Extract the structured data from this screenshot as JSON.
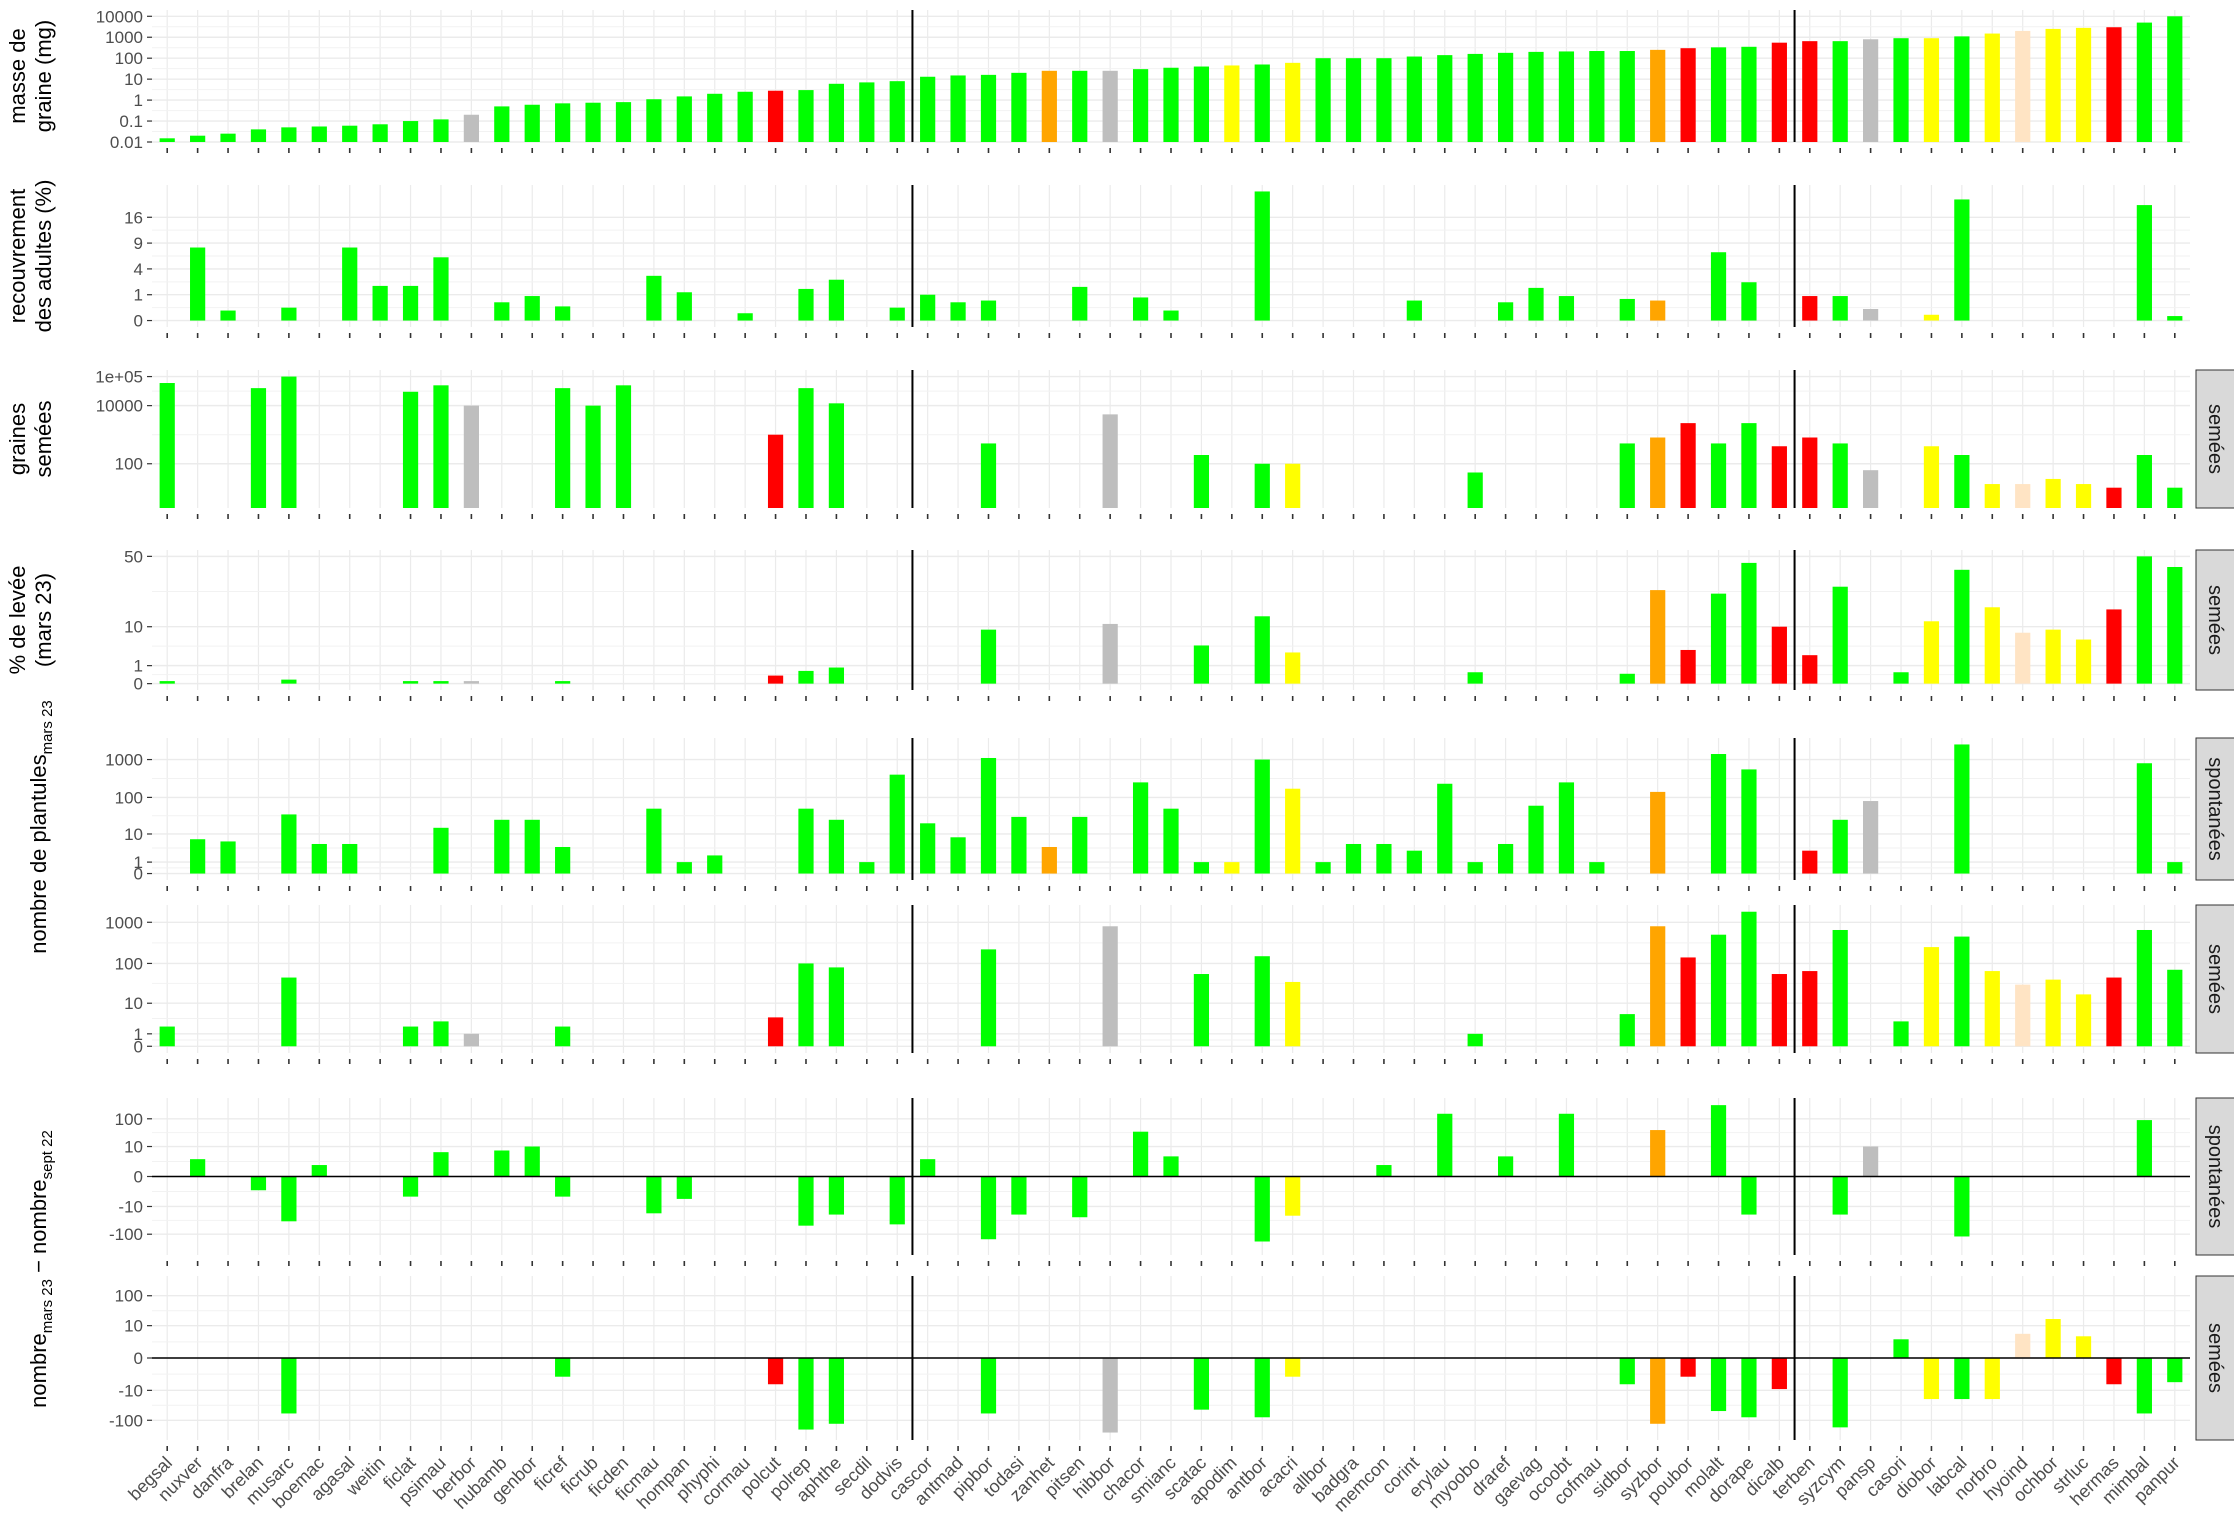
{
  "chart_data": {
    "type": "bar",
    "categories": [
      "begsal",
      "nuxver",
      "danfra",
      "brelan",
      "musarc",
      "boemac",
      "agasal",
      "weitin",
      "ficlat",
      "psimau",
      "berbor",
      "hubamb",
      "genbor",
      "ficref",
      "ficrub",
      "ficden",
      "ficmau",
      "hompan",
      "phyphi",
      "cormau",
      "polcut",
      "polrep",
      "aphthe",
      "secdil",
      "dodvis",
      "cascor",
      "antmad",
      "pipbor",
      "todasi",
      "zanhet",
      "pitsen",
      "hibbor",
      "chacor",
      "smianc",
      "scatac",
      "apodim",
      "antbor",
      "acacri",
      "allbor",
      "badgra",
      "memcon",
      "corint",
      "erylau",
      "myoobo",
      "draref",
      "gaevag",
      "ocoobt",
      "cofmau",
      "sidbor",
      "syzbor",
      "poubor",
      "molalt",
      "dorape",
      "dicalb",
      "terben",
      "syzcym",
      "pansp",
      "casori",
      "diobor",
      "labcal",
      "norbro",
      "hyoind",
      "ochbor",
      "strluc",
      "hermas",
      "mimbal",
      "panpur"
    ],
    "bar_colors": [
      "#00ff00",
      "#00ff00",
      "#00ff00",
      "#00ff00",
      "#00ff00",
      "#00ff00",
      "#00ff00",
      "#00ff00",
      "#00ff00",
      "#00ff00",
      "#bebebe",
      "#00ff00",
      "#00ff00",
      "#00ff00",
      "#00ff00",
      "#00ff00",
      "#00ff00",
      "#00ff00",
      "#00ff00",
      "#00ff00",
      "#ff0000",
      "#00ff00",
      "#00ff00",
      "#00ff00",
      "#00ff00",
      "#00ff00",
      "#00ff00",
      "#00ff00",
      "#00ff00",
      "#ffa500",
      "#00ff00",
      "#bebebe",
      "#00ff00",
      "#00ff00",
      "#00ff00",
      "#ffff00",
      "#00ff00",
      "#ffff00",
      "#00ff00",
      "#00ff00",
      "#00ff00",
      "#00ff00",
      "#00ff00",
      "#00ff00",
      "#00ff00",
      "#00ff00",
      "#00ff00",
      "#00ff00",
      "#00ff00",
      "#ffa500",
      "#ff0000",
      "#00ff00",
      "#00ff00",
      "#ff0000",
      "#ff0000",
      "#00ff00",
      "#bebebe",
      "#00ff00",
      "#ffff00",
      "#00ff00",
      "#ffff00",
      "#ffe4c4",
      "#ffff00",
      "#ffff00",
      "#ff0000",
      "#00ff00",
      "#00ff00"
    ],
    "group_separators_after": [
      "dodvis",
      "dicalb"
    ],
    "x_tick_marks": "every category",
    "grid": true,
    "panels": [
      {
        "ylabel_lines": [
          "masse de",
          "graine (mg)"
        ],
        "strip": "",
        "scale": "log10",
        "ticks": [
          "0.01",
          "0.1",
          "1",
          "10",
          "100",
          "1000",
          "10000"
        ],
        "values": [
          0.015,
          0.02,
          0.025,
          0.04,
          0.05,
          0.055,
          0.06,
          0.07,
          0.1,
          0.12,
          0.2,
          0.5,
          0.6,
          0.7,
          0.75,
          0.8,
          1.1,
          1.5,
          2,
          2.5,
          2.8,
          3,
          6,
          7,
          8,
          13,
          15,
          16,
          20,
          25,
          25,
          25,
          30,
          35,
          40,
          45,
          50,
          60,
          100,
          100,
          100,
          120,
          140,
          160,
          180,
          200,
          210,
          220,
          220,
          250,
          300,
          330,
          350,
          550,
          650,
          650,
          800,
          900,
          900,
          1100,
          1500,
          2000,
          2500,
          2800,
          3000,
          5000,
          10000
        ]
      },
      {
        "ylabel_lines": [
          "recouvrement",
          "des adultes (%)"
        ],
        "strip": "",
        "scale": "sqrt",
        "ticks": [
          "0",
          "1",
          "4",
          "9",
          "16"
        ],
        "values": [
          0,
          8,
          0.15,
          0,
          0.25,
          0,
          8,
          1.8,
          1.8,
          6,
          0,
          0.5,
          0.9,
          0.3,
          0,
          0,
          3,
          1.2,
          0,
          0.08,
          0,
          1.5,
          2.5,
          0,
          0.25,
          1,
          0.5,
          0.6,
          0,
          0,
          1.7,
          0,
          0.8,
          0.15,
          0,
          0,
          25,
          0,
          0,
          0,
          0,
          0.6,
          0,
          0,
          0.5,
          1.6,
          0.9,
          0,
          0.7,
          0.6,
          0,
          7,
          2.2,
          0,
          0.9,
          0.9,
          0.2,
          0,
          0.05,
          22,
          0,
          0,
          0,
          0,
          0,
          20,
          0.03
        ]
      },
      {
        "ylabel_lines": [
          "graines",
          "semées"
        ],
        "strip": "semées",
        "scale": "log10",
        "ticks": [
          "100",
          "10000",
          "1e+05"
        ],
        "values": [
          60000,
          0,
          0,
          40000,
          100000,
          0,
          0,
          0,
          30000,
          50000,
          10000,
          0,
          0,
          40000,
          10000,
          50000,
          0,
          0,
          0,
          0,
          1000,
          40000,
          12000,
          0,
          0,
          0,
          0,
          500,
          0,
          0,
          0,
          5000,
          0,
          0,
          200,
          0,
          100,
          100,
          0,
          0,
          0,
          0,
          0,
          50,
          0,
          0,
          0,
          0,
          500,
          800,
          2500,
          500,
          2500,
          400,
          800,
          500,
          60,
          0,
          400,
          200,
          20,
          20,
          30,
          20,
          15,
          200,
          15
        ]
      },
      {
        "ylabel_lines": [
          "% de levée",
          "(mars 23)"
        ],
        "strip": "semées",
        "scale": "sqrt",
        "ticks": [
          "0",
          "1",
          "10",
          "50"
        ],
        "values": [
          0.02,
          0,
          0,
          0,
          0.05,
          0,
          0,
          0,
          0.02,
          0.02,
          0.02,
          0,
          0,
          0.02,
          0,
          0,
          0,
          0,
          0,
          0,
          0.2,
          0.5,
          0.8,
          0,
          0,
          0,
          0,
          9,
          0,
          0,
          0,
          11,
          0,
          0,
          4.5,
          0,
          14,
          3,
          0,
          0,
          0,
          0,
          0,
          0.4,
          0,
          0,
          0,
          0,
          0.3,
          27,
          3.5,
          25,
          45,
          10,
          2.5,
          29,
          0,
          0.4,
          12,
          40,
          18,
          8,
          9,
          6,
          17,
          50,
          42
        ]
      },
      {
        "ylabel_lines": [
          "nombre de plantules",
          "mars 23"
        ],
        "strip": "spontanées",
        "scale": "log10p1",
        "ticks": [
          "0",
          "1",
          "10",
          "100",
          "1000"
        ],
        "values": [
          0,
          7,
          6,
          0,
          35,
          5,
          5,
          0,
          0,
          15,
          0,
          25,
          25,
          4,
          0,
          0,
          50,
          1,
          2,
          0,
          0,
          50,
          25,
          1,
          400,
          20,
          8,
          1100,
          30,
          4,
          30,
          0,
          250,
          50,
          1,
          1,
          1000,
          170,
          1,
          5,
          5,
          3,
          230,
          1,
          5,
          60,
          250,
          1,
          0,
          140,
          0,
          1400,
          550,
          0,
          3,
          25,
          80,
          0,
          0,
          2500,
          0,
          0,
          0,
          0,
          0,
          800,
          1
        ]
      },
      {
        "ylabel_lines": [],
        "strip": "semées",
        "scale": "log10p1",
        "ticks": [
          "0",
          "1",
          "10",
          "100",
          "1000"
        ],
        "values": [
          2,
          0,
          0,
          0,
          45,
          0,
          0,
          0,
          2,
          3,
          1,
          0,
          0,
          2,
          0,
          0,
          0,
          0,
          0,
          0,
          4,
          100,
          80,
          0,
          0,
          0,
          0,
          220,
          0,
          0,
          0,
          800,
          0,
          0,
          55,
          0,
          150,
          35,
          0,
          0,
          0,
          0,
          0,
          1,
          0,
          0,
          0,
          0,
          5,
          800,
          140,
          500,
          1800,
          55,
          65,
          650,
          0,
          3,
          250,
          450,
          65,
          30,
          40,
          17,
          45,
          650,
          70
        ]
      },
      {
        "ylabel_lines": [],
        "strip": "spontanées",
        "scale": "signed_log10p1",
        "ticks": [
          "-100",
          "-10",
          "0",
          "10",
          "100"
        ],
        "values": [
          0,
          3,
          0,
          -2,
          -35,
          1.5,
          0,
          0,
          -4,
          6,
          0,
          7,
          10,
          -4,
          0,
          0,
          -18,
          -5,
          0,
          0,
          0,
          -50,
          -20,
          0,
          -45,
          3,
          0,
          -150,
          -20,
          0,
          -25,
          0,
          35,
          4,
          0,
          0,
          -180,
          -22,
          0,
          0,
          1.5,
          0,
          150,
          0,
          4,
          0,
          150,
          0,
          0,
          40,
          0,
          300,
          -20,
          0,
          0,
          -20,
          10,
          0,
          0,
          -120,
          0,
          0,
          0,
          0,
          0,
          90,
          0
        ]
      },
      {
        "ylabel_lines": [],
        "strip": "semées",
        "scale": "signed_log10p1",
        "ticks": [
          "-100",
          "-10",
          "0",
          "10",
          "100"
        ],
        "values": [
          0,
          0,
          0,
          0,
          -60,
          0,
          0,
          0,
          0,
          0,
          0,
          0,
          0,
          -3,
          0,
          0,
          0,
          0,
          0,
          0,
          -6,
          -200,
          -130,
          0,
          0,
          0,
          0,
          -60,
          0,
          0,
          0,
          -250,
          0,
          0,
          -45,
          0,
          -80,
          -3,
          0,
          0,
          0,
          0,
          0,
          0,
          0,
          0,
          0,
          0,
          -6,
          -130,
          -3,
          -50,
          -80,
          -9,
          0,
          -170,
          0,
          3,
          -20,
          -20,
          -20,
          5,
          17,
          4,
          -6,
          -60,
          -5
        ]
      }
    ],
    "combined_ylabel": {
      "left": "nombre",
      "sub1": "mars 23",
      "mid": " − nombre",
      "sub2": "sept 22"
    }
  }
}
